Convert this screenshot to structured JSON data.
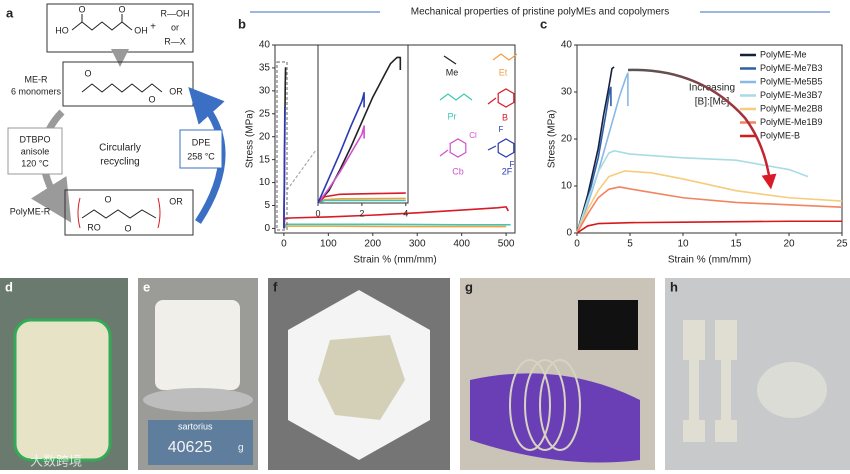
{
  "figure_title": "Mechanical properties of pristine polyMEs and copolymers",
  "scheme": {
    "label": "a",
    "acid": [
      "HO",
      "O",
      "O",
      "OH"
    ],
    "plus": "+",
    "alcohol": "R—OH",
    "or": "or",
    "halide": "R—X",
    "monomer_label": [
      "ME-R",
      "6 monomers"
    ],
    "monomer": [
      "O",
      "O",
      "OR"
    ],
    "initiation": [
      "DTBPO",
      "anisole",
      "120 °C"
    ],
    "center": [
      "Circularly",
      "recycling"
    ],
    "depolymerization": [
      "DPE",
      "258 °C"
    ],
    "polymer_label": "PolyME-R",
    "polymer": [
      "O",
      "OR",
      "RO",
      "O"
    ]
  },
  "chart_data": [
    {
      "type": "line",
      "label": "b",
      "x_label": "Strain % (mm/mm)",
      "y_label": "Stress (MPa)",
      "xlim": [
        -20,
        520
      ],
      "ylim": [
        -1,
        40
      ],
      "xticks": [
        0,
        100,
        200,
        300,
        400,
        500
      ],
      "yticks": [
        0,
        5,
        10,
        15,
        20,
        25,
        30,
        35,
        40
      ],
      "structure_atoms": [
        "Cl",
        "F",
        "F"
      ],
      "series": [
        {
          "name": "Me",
          "color": "#222222",
          "x": [
            0,
            1,
            2,
            3,
            3.7,
            3.8
          ],
          "values": [
            0,
            8,
            20,
            31,
            35,
            33
          ]
        },
        {
          "name": "Et",
          "color": "#f0a040",
          "x": [
            0,
            5,
            100,
            300,
            500
          ],
          "values": [
            0,
            0.5,
            0.5,
            0.4,
            0.4
          ]
        },
        {
          "name": "Pr",
          "color": "#3cc8b4",
          "x": [
            0,
            5,
            200,
            400,
            510
          ],
          "values": [
            0,
            0.9,
            0.9,
            0.8,
            0.8
          ]
        },
        {
          "name": "B",
          "color": "#d81b27",
          "x": [
            0,
            2,
            20,
            100,
            200,
            300,
            400,
            480,
            500,
            505
          ],
          "values": [
            0,
            2.2,
            2.3,
            2.5,
            2.9,
            3.4,
            4,
            4.5,
            4.7,
            3.8
          ]
        },
        {
          "name": "Cb",
          "color": "#d050d0",
          "x": [
            0,
            1,
            2,
            2.1
          ],
          "values": [
            0,
            9,
            18,
            19
          ]
        },
        {
          "name": "2F",
          "color": "#2a3ab0",
          "x": [
            0,
            1,
            2,
            2.1
          ],
          "values": [
            0,
            12,
            25,
            26.5
          ]
        }
      ]
    },
    {
      "type": "line",
      "xlim": [
        0,
        4.1
      ],
      "ylim": [
        0,
        38
      ],
      "xticks": [
        0,
        2,
        4
      ],
      "series": [
        {
          "color": "#222222",
          "x": [
            0,
            0.5,
            1,
            1.5,
            2,
            2.5,
            3,
            3.3,
            3.6,
            3.75,
            3.75
          ],
          "values": [
            0,
            3,
            8,
            13.5,
            19.5,
            25.5,
            30.5,
            33.5,
            35,
            35,
            32
          ]
        },
        {
          "color": "#f0a040",
          "x": [
            0,
            0.3,
            1,
            4
          ],
          "values": [
            0,
            0.8,
            1,
            1.1
          ]
        },
        {
          "color": "#3cc8b4",
          "x": [
            0,
            0.3,
            4
          ],
          "values": [
            0,
            0.6,
            0.6
          ]
        },
        {
          "color": "#d81b27",
          "x": [
            0,
            0.3,
            1,
            2,
            3,
            4
          ],
          "values": [
            0,
            1.5,
            2.1,
            2.2,
            2.3,
            2.4
          ]
        },
        {
          "color": "#d050d0",
          "x": [
            0,
            0.5,
            1,
            1.5,
            2,
            2.1,
            2.1
          ],
          "values": [
            0,
            3.5,
            7.5,
            12,
            16.5,
            18.5,
            15.5
          ]
        },
        {
          "color": "#2a3ab0",
          "x": [
            0,
            0.5,
            1,
            1.5,
            2,
            2.1,
            2.1
          ],
          "values": [
            0,
            6,
            12,
            18.5,
            24.5,
            26.5,
            23
          ]
        }
      ]
    },
    {
      "type": "line",
      "label": "c",
      "x_label": "Strain % (mm/mm)",
      "y_label": "Stress (MPa)",
      "xlim": [
        0,
        25
      ],
      "ylim": [
        0,
        40
      ],
      "xticks": [
        0,
        5,
        10,
        15,
        20,
        25
      ],
      "yticks": [
        0,
        10,
        20,
        30,
        40
      ],
      "annotation": [
        "Increasing",
        "[B]:[Me]"
      ],
      "series": [
        {
          "name": "PolyME-Me",
          "color": "#14213d",
          "x": [
            0,
            1,
            2,
            2.5,
            3,
            3.3,
            3.5
          ],
          "values": [
            0,
            8,
            18,
            25,
            31,
            35,
            35.3
          ]
        },
        {
          "name": "PolyME-Me7B3",
          "color": "#2f5fa8",
          "x": [
            0,
            1,
            2,
            2.7,
            3.1,
            3.2,
            3.2
          ],
          "values": [
            0,
            7,
            16,
            25,
            30.5,
            31,
            27
          ]
        },
        {
          "name": "PolyME-Me5B5",
          "color": "#8ab8e6",
          "x": [
            0,
            1,
            2,
            3,
            4,
            4.6,
            4.8,
            4.8
          ],
          "values": [
            0,
            6,
            13,
            21,
            29,
            33,
            34,
            27
          ]
        },
        {
          "name": "PolyME-Me3B7",
          "color": "#a9dbe3",
          "x": [
            0,
            1,
            2,
            3,
            3.5,
            5,
            10,
            15,
            20,
            21.8
          ],
          "values": [
            0,
            7,
            13,
            17,
            17.5,
            16.8,
            16,
            15.5,
            13.5,
            12
          ]
        },
        {
          "name": "PolyME-Me2B8",
          "color": "#f7cc7d",
          "x": [
            0,
            1,
            2,
            3,
            4.5,
            7,
            10,
            15,
            20,
            25
          ],
          "values": [
            0,
            5,
            9,
            12,
            13.2,
            12.8,
            11.5,
            9,
            7.5,
            6.8
          ]
        },
        {
          "name": "PolyME-Me1B9",
          "color": "#f2845f",
          "x": [
            0,
            1,
            2,
            3,
            4,
            6,
            10,
            15,
            20,
            25
          ],
          "values": [
            0,
            4,
            7.5,
            9.3,
            9.8,
            9,
            7.5,
            6.5,
            6,
            5.5
          ]
        },
        {
          "name": "PolyME-B",
          "color": "#d7191c",
          "x": [
            0,
            1,
            2,
            5,
            10,
            15,
            20,
            25
          ],
          "values": [
            0,
            1.5,
            2,
            2.2,
            2.3,
            2.4,
            2.5,
            2.5
          ]
        }
      ]
    }
  ],
  "photos": {
    "labels": [
      "d",
      "e",
      "f",
      "g",
      "h"
    ],
    "balance_brand": "sartorius",
    "balance_reading": "40625",
    "balance_unit": "g",
    "watermark": "大数跨境"
  }
}
